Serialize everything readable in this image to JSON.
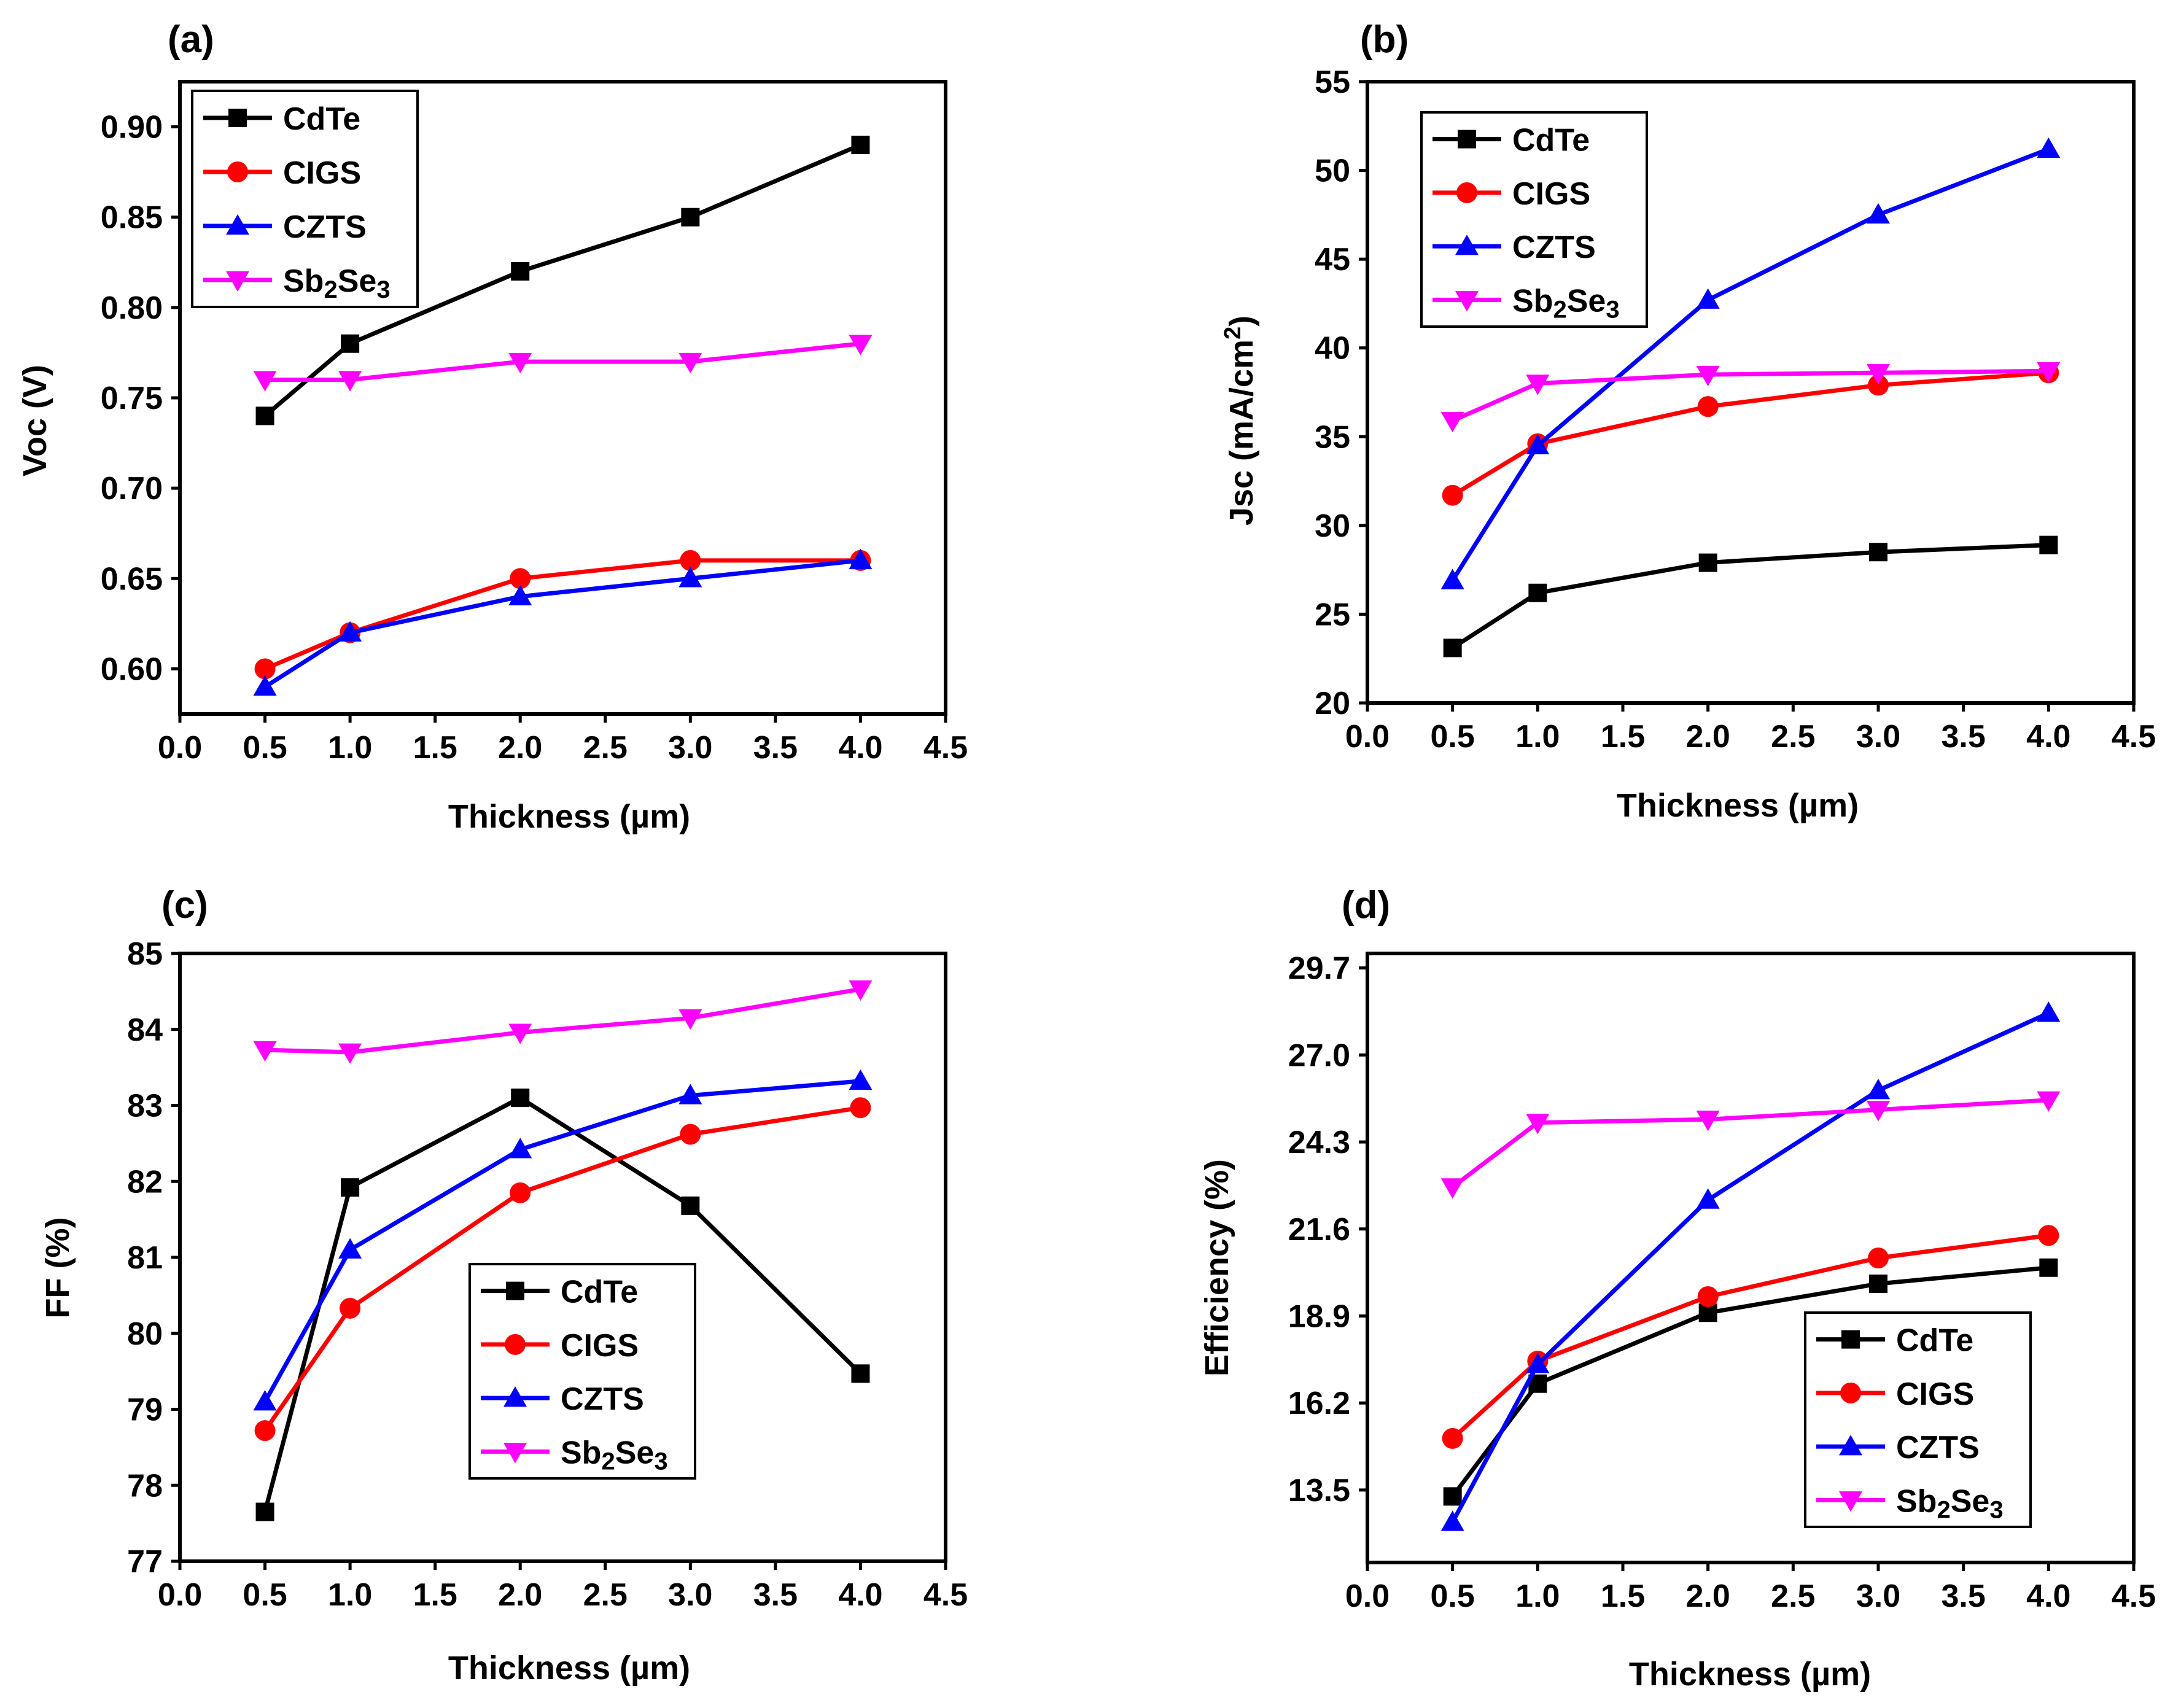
{
  "figure": {
    "x_axis_title": "Thickness (µm)"
  },
  "chart_data": [
    {
      "panel": "(a)",
      "type": "line",
      "xlabel": "Thickness (µm)",
      "ylabel": "Voc (V)",
      "xlim": [
        0,
        4.5
      ],
      "ylim": [
        0.575,
        0.925
      ],
      "xticks": [
        "0.0",
        "0.5",
        "1.0",
        "1.5",
        "2.0",
        "2.5",
        "3.0",
        "3.5",
        "4.0",
        "4.5"
      ],
      "yticks": [
        "0.60",
        "0.65",
        "0.70",
        "0.75",
        "0.80",
        "0.85",
        "0.90"
      ],
      "legend_position": "top-left",
      "x": [
        0.5,
        1.0,
        2.0,
        3.0,
        4.0
      ],
      "series": [
        {
          "name": "CdTe",
          "color": "#000000",
          "marker": "square",
          "values": [
            0.74,
            0.78,
            0.82,
            0.85,
            0.89
          ]
        },
        {
          "name": "CIGS",
          "color": "#ff0000",
          "marker": "circle",
          "values": [
            0.6,
            0.62,
            0.65,
            0.66,
            0.66
          ]
        },
        {
          "name": "CZTS",
          "color": "#0000ff",
          "marker": "triangle-up",
          "values": [
            0.59,
            0.62,
            0.64,
            0.65,
            0.66
          ]
        },
        {
          "name": "Sb2Se3",
          "color": "#ff00ff",
          "marker": "triangle-down",
          "values": [
            0.76,
            0.76,
            0.77,
            0.77,
            0.78
          ]
        }
      ]
    },
    {
      "panel": "(b)",
      "type": "line",
      "xlabel": "Thickness (µm)",
      "ylabel": "Jsc (mA/cm2)",
      "xlim": [
        0,
        4.5
      ],
      "ylim": [
        20,
        55
      ],
      "xticks": [
        "0.0",
        "0.5",
        "1.0",
        "1.5",
        "2.0",
        "2.5",
        "3.0",
        "3.5",
        "4.0",
        "4.5"
      ],
      "yticks": [
        "20",
        "25",
        "30",
        "35",
        "40",
        "45",
        "50",
        "55"
      ],
      "legend_position": "top-left",
      "x": [
        0.5,
        1.0,
        2.0,
        3.0,
        4.0
      ],
      "series": [
        {
          "name": "CdTe",
          "color": "#000000",
          "marker": "square",
          "values": [
            23.1,
            26.2,
            27.9,
            28.5,
            28.9
          ]
        },
        {
          "name": "CIGS",
          "color": "#ff0000",
          "marker": "circle",
          "values": [
            31.7,
            34.6,
            36.7,
            37.9,
            38.6
          ]
        },
        {
          "name": "CZTS",
          "color": "#0000ff",
          "marker": "triangle-up",
          "values": [
            26.9,
            34.5,
            42.7,
            47.5,
            51.2
          ]
        },
        {
          "name": "Sb2Se3",
          "color": "#ff00ff",
          "marker": "triangle-down",
          "values": [
            35.9,
            38.0,
            38.5,
            38.6,
            38.7
          ]
        }
      ]
    },
    {
      "panel": "(c)",
      "type": "line",
      "xlabel": "Thickness (µm)",
      "ylabel": "FF (%)",
      "xlim": [
        0,
        4.5
      ],
      "ylim": [
        77,
        85
      ],
      "xticks": [
        "0.0",
        "0.5",
        "1.0",
        "1.5",
        "2.0",
        "2.5",
        "3.0",
        "3.5",
        "4.0",
        "4.5"
      ],
      "yticks": [
        "77",
        "78",
        "79",
        "80",
        "81",
        "82",
        "83",
        "84",
        "85"
      ],
      "legend_position": "center",
      "x": [
        0.5,
        1.0,
        2.0,
        3.0,
        4.0
      ],
      "series": [
        {
          "name": "CdTe",
          "color": "#000000",
          "marker": "square",
          "values": [
            77.65,
            81.92,
            83.1,
            81.68,
            79.47
          ]
        },
        {
          "name": "CIGS",
          "color": "#ff0000",
          "marker": "circle",
          "values": [
            78.72,
            80.33,
            81.85,
            82.62,
            82.97
          ]
        },
        {
          "name": "CZTS",
          "color": "#0000ff",
          "marker": "triangle-up",
          "values": [
            79.1,
            81.1,
            82.42,
            83.13,
            83.32
          ]
        },
        {
          "name": "Sb2Se3",
          "color": "#ff00ff",
          "marker": "triangle-down",
          "values": [
            83.73,
            83.7,
            83.96,
            84.15,
            84.53
          ]
        }
      ]
    },
    {
      "panel": "(d)",
      "type": "line",
      "xlabel": "Thickness (µm)",
      "ylabel": "Efficiency (%)",
      "xlim": [
        0,
        4.5
      ],
      "ylim": [
        11.25,
        30.15
      ],
      "xticks": [
        "0.0",
        "0.5",
        "1.0",
        "1.5",
        "2.0",
        "2.5",
        "3.0",
        "3.5",
        "4.0",
        "4.5"
      ],
      "yticks": [
        "13.5",
        "16.2",
        "18.9",
        "21.6",
        "24.3",
        "27.0",
        "29.7"
      ],
      "legend_position": "bottom-right",
      "x": [
        0.5,
        1.0,
        2.0,
        3.0,
        4.0
      ],
      "series": [
        {
          "name": "CdTe",
          "color": "#000000",
          "marker": "square",
          "values": [
            13.3,
            16.8,
            19.0,
            19.9,
            20.4
          ]
        },
        {
          "name": "CIGS",
          "color": "#ff0000",
          "marker": "circle",
          "values": [
            15.1,
            17.5,
            19.5,
            20.7,
            21.4
          ]
        },
        {
          "name": "CZTS",
          "color": "#0000ff",
          "marker": "triangle-up",
          "values": [
            12.5,
            17.4,
            22.5,
            25.9,
            28.3
          ]
        },
        {
          "name": "Sb2Se3",
          "color": "#ff00ff",
          "marker": "triangle-down",
          "values": [
            22.9,
            24.9,
            25.0,
            25.3,
            25.6
          ]
        }
      ]
    }
  ]
}
